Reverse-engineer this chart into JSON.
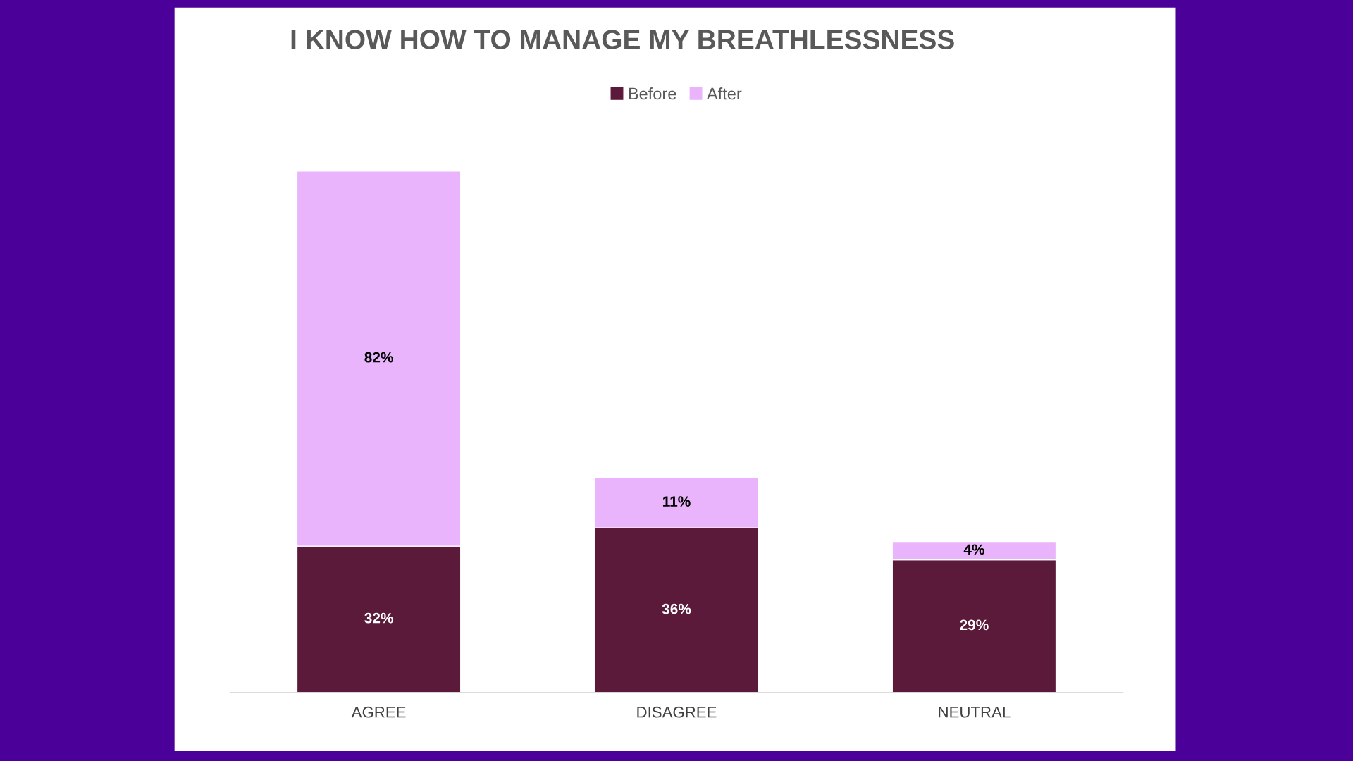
{
  "chart_data": {
    "type": "bar",
    "title": "I KNOW HOW TO MANAGE MY BREATHLESSNESS",
    "categories": [
      "AGREE",
      "DISAGREE",
      "NEUTRAL"
    ],
    "stacked": true,
    "legend": "top",
    "series": [
      {
        "name": "Before",
        "color": "#5c1a3a",
        "values": [
          32,
          36,
          29
        ],
        "value_labels": [
          "32%",
          "36%",
          "29%"
        ]
      },
      {
        "name": "After",
        "color": "#eab4fc",
        "values": [
          82,
          11,
          4
        ],
        "value_labels": [
          "82%",
          "11%",
          "4%"
        ]
      }
    ]
  }
}
